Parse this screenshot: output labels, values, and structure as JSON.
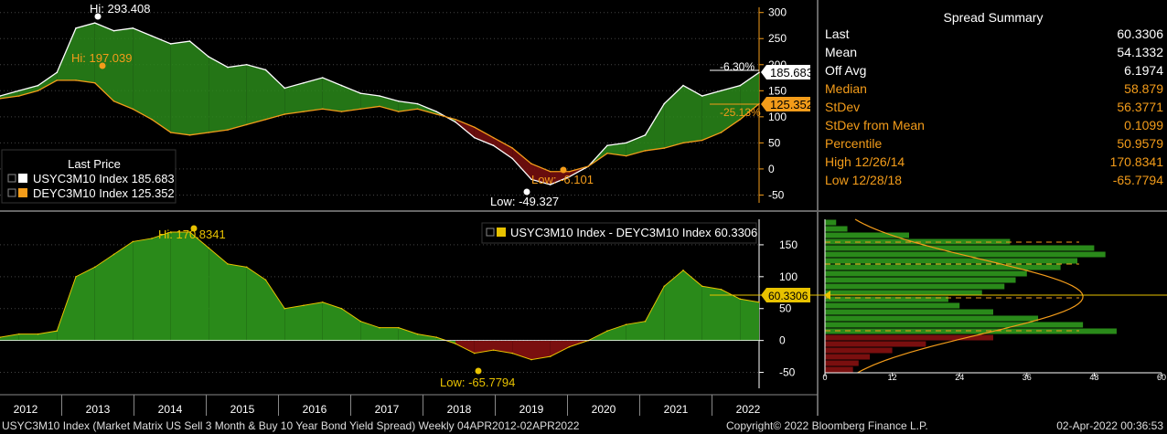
{
  "colors": {
    "white_line": "#ffffff",
    "orange_line": "#f39c1a",
    "green_fill": "#2a8a1a",
    "red_fill": "#7a0f0f",
    "axis_orange": "#f39c1a",
    "grid": "#444444"
  },
  "upper_legend": {
    "title": "Last Price",
    "items": [
      {
        "label": "USYC3M10 Index 185.683",
        "color": "#ffffff"
      },
      {
        "label": "DEYC3M10 Index 125.352",
        "color": "#f39c1a"
      }
    ]
  },
  "upper_annotations": {
    "us_hi": "Hi: 293.408",
    "de_hi": "Hi: 197.039",
    "us_low": "Low: -49.327",
    "de_low": "Low: -6.101",
    "us_pct": "-6.30%",
    "de_pct": "-25.13%",
    "us_last": "185.683",
    "de_last": "125.352"
  },
  "lower_legend": "USYC3M10 Index - DEYC3M10 Index 60.3306",
  "lower_annotations": {
    "hi": "Hi: 170.8341",
    "low": "Low: -65.7794",
    "last": "60.3306"
  },
  "summary": {
    "title": "Spread Summary",
    "rows": [
      {
        "label": "Last",
        "value": "60.3306",
        "color": "#ffffff"
      },
      {
        "label": "Mean",
        "value": "54.1332",
        "color": "#ffffff"
      },
      {
        "label": "Off Avg",
        "value": "6.1974",
        "color": "#ffffff"
      },
      {
        "label": "Median",
        "value": "58.879",
        "color": "#f39c1a"
      },
      {
        "label": "StDev",
        "value": "56.3771",
        "color": "#f39c1a"
      },
      {
        "label": "StDev from Mean",
        "value": "0.1099",
        "color": "#f39c1a"
      },
      {
        "label": "Percentile",
        "value": "50.9579",
        "color": "#f39c1a"
      },
      {
        "label": "High 12/26/14",
        "value": "170.8341",
        "color": "#f39c1a"
      },
      {
        "label": "Low 12/28/18",
        "value": "-65.7794",
        "color": "#f39c1a"
      }
    ]
  },
  "footer": {
    "left": "USYC3M10 Index (Market Matrix US Sell 3 Month & Buy 10 Year Bond Yield Spread)  Weekly 04APR2012-02APR2022",
    "copyright": "Copyright© 2022 Bloomberg Finance L.P.",
    "timestamp": "02-Apr-2022 00:36:53"
  },
  "chart_data": [
    {
      "type": "area",
      "x_ticks": [
        "2012",
        "2013",
        "2014",
        "2015",
        "2016",
        "2017",
        "2018",
        "2019",
        "2020",
        "2021",
        "2022"
      ],
      "xlim": [
        2012.25,
        2022.25
      ],
      "ylim": [
        -65,
        310
      ],
      "y_ticks": [
        -50,
        0,
        50,
        100,
        150,
        200,
        250,
        300
      ],
      "x": [
        2012.25,
        2012.5,
        2012.75,
        2013,
        2013.25,
        2013.5,
        2013.75,
        2014,
        2014.25,
        2014.5,
        2014.75,
        2015,
        2015.25,
        2015.5,
        2015.75,
        2016,
        2016.25,
        2016.5,
        2016.75,
        2017,
        2017.25,
        2017.5,
        2017.75,
        2018,
        2018.25,
        2018.5,
        2018.75,
        2019,
        2019.25,
        2019.5,
        2019.75,
        2020,
        2020.25,
        2020.5,
        2020.75,
        2021,
        2021.25,
        2021.5,
        2021.75,
        2022,
        2022.25
      ],
      "series": [
        {
          "name": "USYC3M10 Index",
          "values": [
            140,
            150,
            160,
            185,
            270,
            280,
            265,
            270,
            255,
            240,
            245,
            215,
            195,
            200,
            190,
            155,
            165,
            175,
            160,
            145,
            140,
            130,
            125,
            110,
            90,
            60,
            45,
            20,
            -20,
            -30,
            -15,
            5,
            45,
            50,
            65,
            125,
            160,
            140,
            150,
            160,
            185
          ]
        },
        {
          "name": "DEYC3M10 Index",
          "values": [
            135,
            140,
            150,
            170,
            170,
            165,
            130,
            115,
            95,
            70,
            65,
            70,
            75,
            85,
            95,
            105,
            110,
            115,
            110,
            115,
            120,
            110,
            115,
            105,
            95,
            80,
            60,
            40,
            10,
            -5,
            -5,
            5,
            30,
            25,
            35,
            40,
            50,
            55,
            70,
            95,
            125
          ]
        }
      ]
    },
    {
      "type": "area",
      "xlim": [
        2012.25,
        2022.25
      ],
      "ylim": [
        -75,
        190
      ],
      "y_ticks": [
        -50,
        0,
        50,
        100,
        150
      ],
      "x": [
        2012.25,
        2012.5,
        2012.75,
        2013,
        2013.25,
        2013.5,
        2013.75,
        2014,
        2014.25,
        2014.5,
        2014.75,
        2015,
        2015.25,
        2015.5,
        2015.75,
        2016,
        2016.25,
        2016.5,
        2016.75,
        2017,
        2017.25,
        2017.5,
        2017.75,
        2018,
        2018.25,
        2018.5,
        2018.75,
        2019,
        2019.25,
        2019.5,
        2019.75,
        2020,
        2020.25,
        2020.5,
        2020.75,
        2021,
        2021.25,
        2021.5,
        2021.75,
        2022,
        2022.25
      ],
      "series": [
        {
          "name": "USYC3M10 Index - DEYC3M10 Index",
          "values": [
            5,
            10,
            10,
            15,
            100,
            115,
            135,
            155,
            160,
            170,
            170,
            145,
            120,
            115,
            95,
            50,
            55,
            60,
            50,
            30,
            20,
            20,
            10,
            5,
            -5,
            -20,
            -15,
            -20,
            -30,
            -25,
            -10,
            0,
            15,
            25,
            30,
            85,
            110,
            85,
            80,
            65,
            60
          ]
        }
      ]
    },
    {
      "type": "bar",
      "orientation": "horizontal",
      "x_ticks": [
        0,
        12,
        24,
        36,
        48,
        60
      ],
      "xlim": [
        0,
        60
      ],
      "bins": [
        -60,
        -50,
        -40,
        -30,
        -20,
        -10,
        0,
        10,
        20,
        30,
        40,
        50,
        60,
        70,
        80,
        90,
        100,
        110,
        120,
        130,
        140,
        150,
        160,
        170
      ],
      "values": [
        5,
        6,
        8,
        12,
        18,
        30,
        52,
        46,
        38,
        30,
        24,
        22,
        28,
        32,
        34,
        36,
        42,
        45,
        50,
        48,
        33,
        15,
        4,
        2
      ]
    }
  ]
}
